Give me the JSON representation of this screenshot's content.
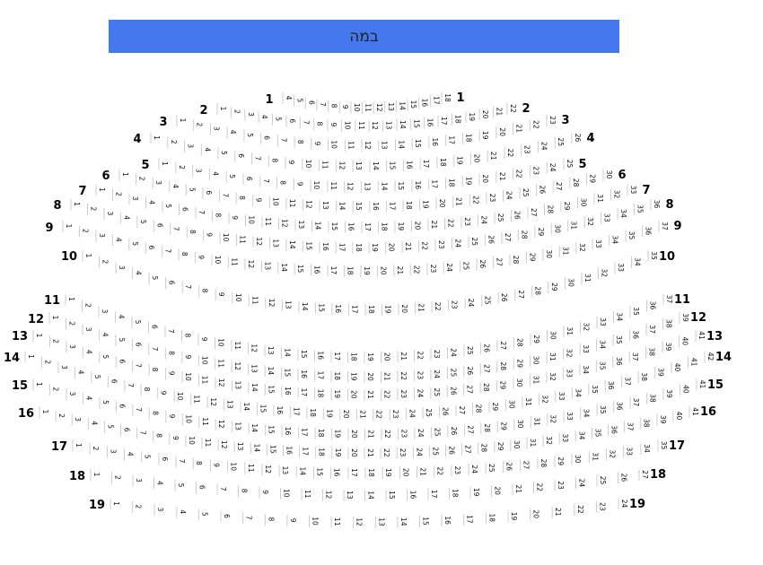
{
  "stage": {
    "label": "במה",
    "color": "#4577ee"
  },
  "rows": [
    {
      "label": "1",
      "segments": [
        [
          4,
          18
        ]
      ]
    },
    {
      "label": "2",
      "segments": [
        [
          1,
          22
        ]
      ]
    },
    {
      "label": "3",
      "segments": [
        [
          1,
          23
        ]
      ]
    },
    {
      "label": "4",
      "segments": [
        [
          1,
          26
        ]
      ]
    },
    {
      "label": "5",
      "segments": [
        [
          1,
          25
        ]
      ]
    },
    {
      "label": "6",
      "segments": [
        [
          1,
          30
        ]
      ]
    },
    {
      "label": "7",
      "segments": [
        [
          1,
          33
        ]
      ]
    },
    {
      "label": "8",
      "segments": [
        [
          1,
          36
        ]
      ]
    },
    {
      "label": "9",
      "segments": [
        [
          1,
          37
        ]
      ]
    },
    {
      "label": "10",
      "segments": [
        [
          1,
          35
        ]
      ]
    },
    {
      "label": "11",
      "segments": [
        [
          1,
          37
        ]
      ]
    },
    {
      "label": "12",
      "segments": [
        [
          1,
          39
        ]
      ]
    },
    {
      "label": "13",
      "segments": [
        [
          1,
          41
        ]
      ]
    },
    {
      "label": "14",
      "segments": [
        [
          1,
          42
        ]
      ]
    },
    {
      "label": "15",
      "segments": [
        [
          1,
          41
        ]
      ]
    },
    {
      "label": "16",
      "segments": [
        [
          1,
          41
        ]
      ]
    },
    {
      "label": "17",
      "segments": [
        [
          1,
          35
        ]
      ]
    },
    {
      "label": "18",
      "segments": [
        [
          1,
          27
        ]
      ]
    },
    {
      "label": "19",
      "segments": [
        [
          1,
          13
        ],
        [
          14,
          24
        ]
      ]
    }
  ]
}
